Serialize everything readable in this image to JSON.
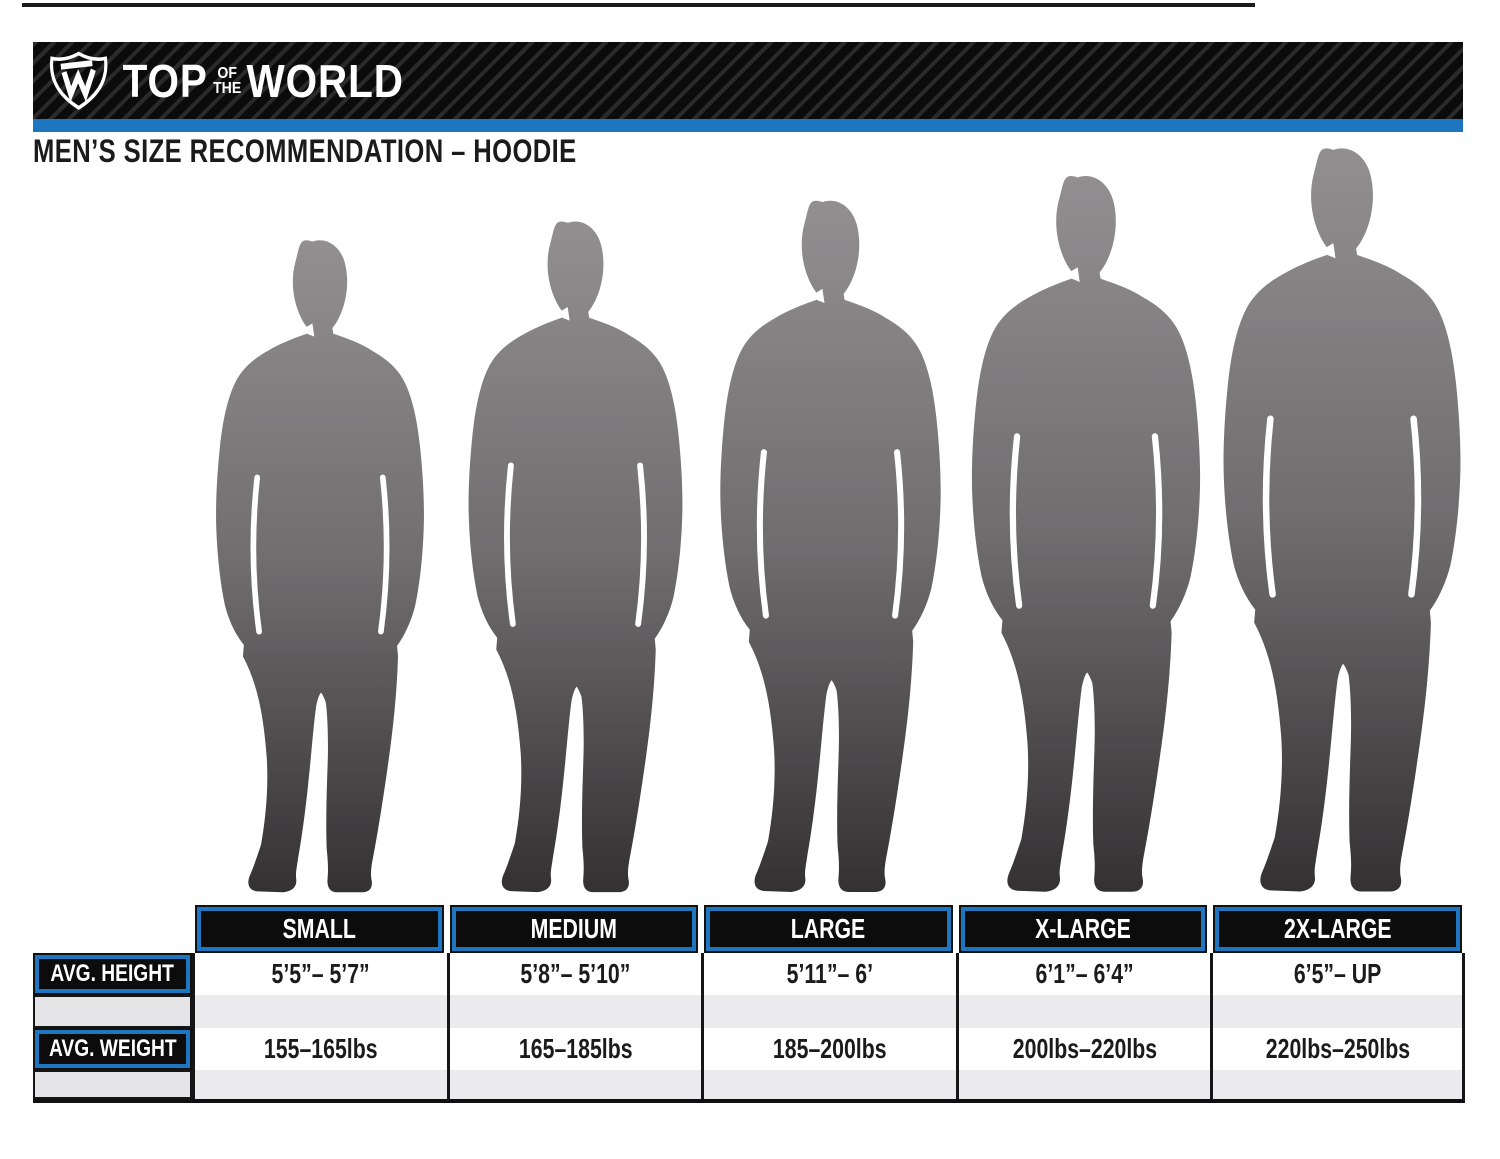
{
  "brand": {
    "monogram": "TW",
    "word_top": "TOP",
    "word_of": "OF",
    "word_the": "THE",
    "word_world": "WORLD"
  },
  "header": {
    "title": "MEN’S SIZE RECOMMENDATION – HOODIE"
  },
  "colors": {
    "accent_blue": "#1e76c0",
    "banner_black": "#0c0c0c",
    "silhouette_top": "#929091",
    "silhouette_bottom": "#323031"
  },
  "figures": [
    {
      "size": "small"
    },
    {
      "size": "medium"
    },
    {
      "size": "large"
    },
    {
      "size": "x-large"
    },
    {
      "size": "2x-large"
    }
  ],
  "size_table": {
    "row_labels": {
      "height": "AVG. HEIGHT",
      "weight": "AVG. WEIGHT"
    },
    "columns": [
      {
        "size": "SMALL",
        "height": "5’5”– 5’7”",
        "weight": "155–165lbs"
      },
      {
        "size": "MEDIUM",
        "height": "5’8”– 5’10”",
        "weight": "165–185lbs"
      },
      {
        "size": "LARGE",
        "height": "5’11”– 6’",
        "weight": "185–200lbs"
      },
      {
        "size": "X-LARGE",
        "height": "6’1”– 6’4”",
        "weight": "200lbs–220lbs"
      },
      {
        "size": "2X-LARGE",
        "height": "6’5”– UP",
        "weight": "220lbs–250lbs"
      }
    ]
  }
}
